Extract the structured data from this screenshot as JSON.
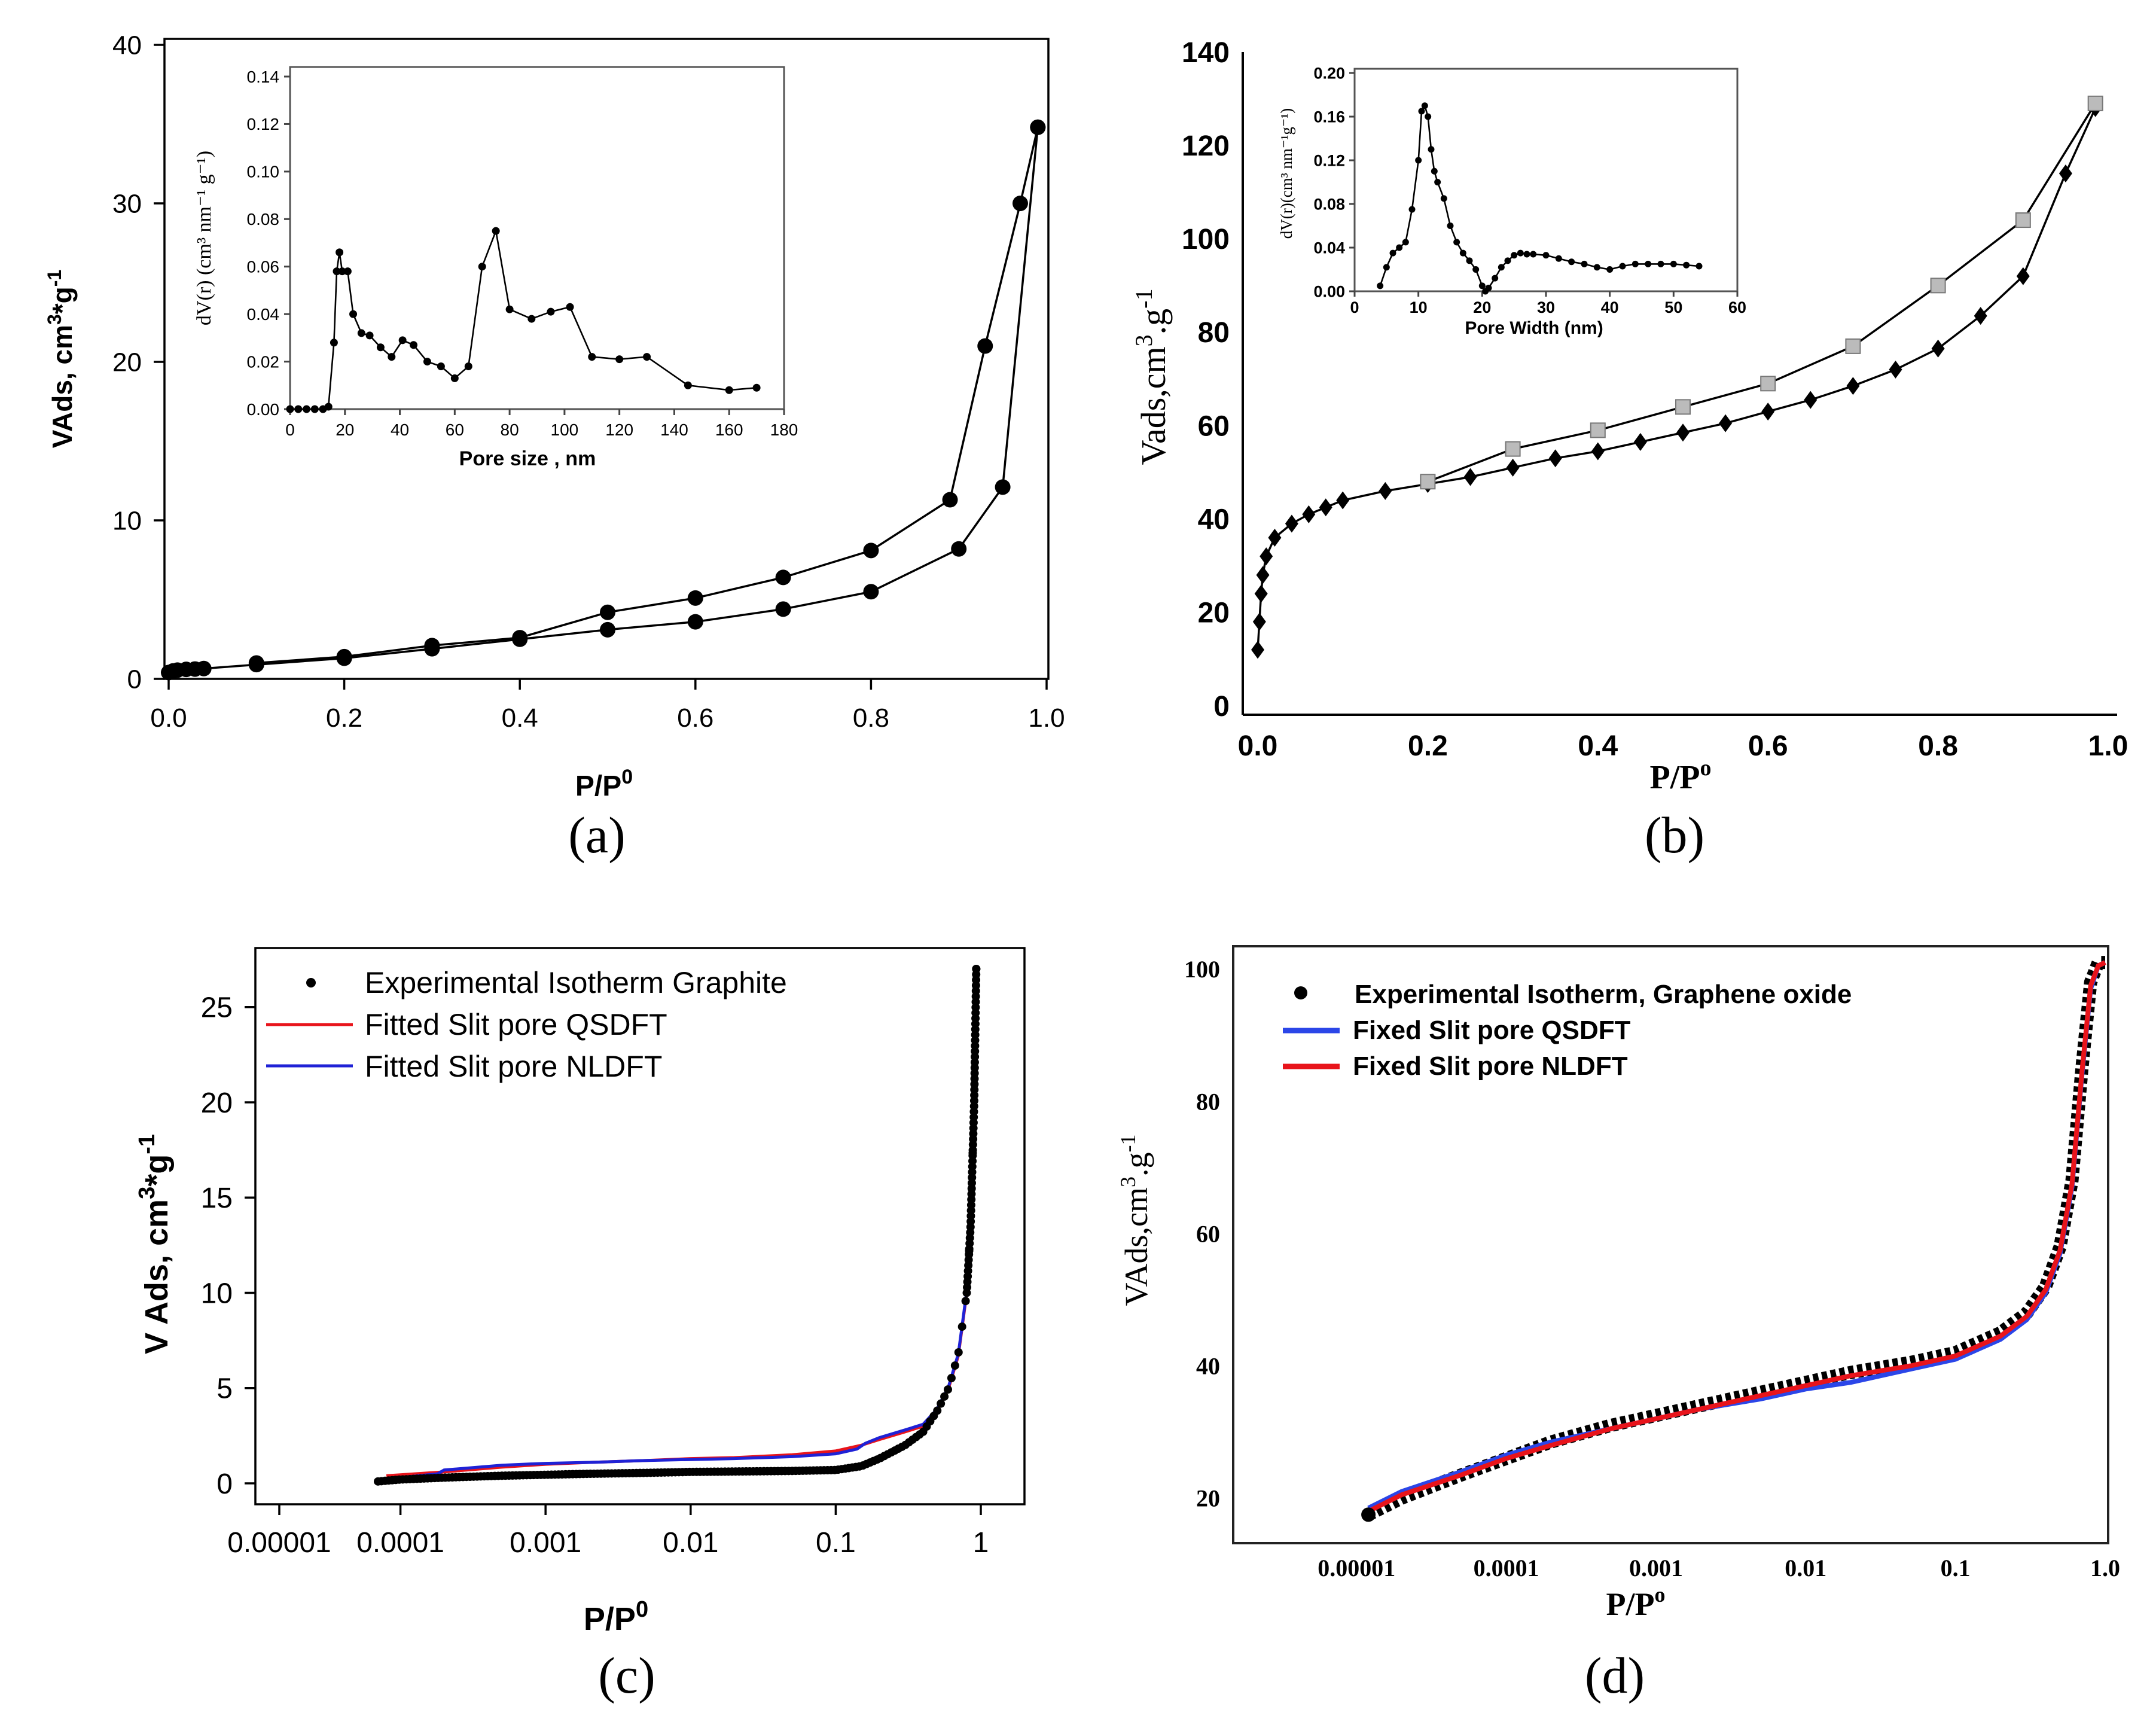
{
  "figure": {
    "captions": [
      "(a)",
      "(b)",
      "(c)",
      "(d)"
    ]
  },
  "chart_data": [
    {
      "panel": "(a)",
      "type": "line",
      "xlabel": "P/P",
      "xlabel_sup": "0",
      "ylabel": "VAds, cm",
      "ylabel_sup1": "3",
      "ylabel_mid": "*g",
      "ylabel_sup2": "-1",
      "xlim": [
        0,
        1.0
      ],
      "ylim": [
        0,
        40
      ],
      "xticks": [
        "0.0",
        "0.2",
        "0.4",
        "0.6",
        "0.8",
        "1.0"
      ],
      "xtick_values": [
        0,
        0.2,
        0.4,
        0.6,
        0.8,
        1.0
      ],
      "yticks": [
        "0",
        "10",
        "20",
        "30",
        "40"
      ],
      "ytick_values": [
        0,
        10,
        20,
        30,
        40
      ],
      "series": [
        {
          "name": "adsorption",
          "marker": "circle",
          "x": [
            0.0,
            0.005,
            0.01,
            0.02,
            0.03,
            0.04,
            0.1,
            0.2,
            0.3,
            0.4,
            0.5,
            0.6,
            0.7,
            0.8,
            0.9,
            0.95,
            0.99
          ],
          "y": [
            0.4,
            0.5,
            0.55,
            0.6,
            0.62,
            0.65,
            0.9,
            1.3,
            1.9,
            2.5,
            3.1,
            3.6,
            4.4,
            5.5,
            8.2,
            12.1,
            34.8
          ]
        },
        {
          "name": "desorption",
          "marker": "circle",
          "x": [
            0.99,
            0.97,
            0.93,
            0.89,
            0.8,
            0.7,
            0.6,
            0.5,
            0.4,
            0.3,
            0.2,
            0.1
          ],
          "y": [
            34.8,
            30.0,
            21.0,
            11.3,
            8.1,
            6.4,
            5.1,
            4.2,
            2.6,
            2.1,
            1.4,
            1.0
          ]
        }
      ],
      "inset": {
        "xlabel": "Pore size , nm",
        "ylabel": "dV(r) (cm³ nm⁻¹ g⁻¹)",
        "xlim": [
          0,
          180
        ],
        "ylim": [
          0,
          0.14
        ],
        "xticks": [
          "0",
          "20",
          "40",
          "60",
          "80",
          "100",
          "120",
          "140",
          "160",
          "180"
        ],
        "xtick_values": [
          0,
          20,
          40,
          60,
          80,
          100,
          120,
          140,
          160,
          180
        ],
        "yticks": [
          "0.00",
          "0.02",
          "0.04",
          "0.06",
          "0.08",
          "0.10",
          "0.12",
          "0.14"
        ],
        "ytick_values": [
          0,
          0.02,
          0.04,
          0.06,
          0.08,
          0.1,
          0.12,
          0.14
        ],
        "x": [
          0,
          3,
          6,
          9,
          12,
          14,
          16,
          17,
          18,
          19,
          21,
          23,
          26,
          29,
          33,
          37,
          41,
          45,
          50,
          55,
          60,
          65,
          70,
          75,
          80,
          88,
          95,
          102,
          110,
          120,
          130,
          145,
          160,
          170
        ],
        "y": [
          0,
          0,
          0,
          0,
          0,
          0.001,
          0.028,
          0.058,
          0.066,
          0.058,
          0.058,
          0.04,
          0.032,
          0.031,
          0.026,
          0.022,
          0.029,
          0.027,
          0.02,
          0.018,
          0.013,
          0.018,
          0.06,
          0.075,
          0.042,
          0.038,
          0.041,
          0.043,
          0.022,
          0.021,
          0.022,
          0.01,
          0.008,
          0.009
        ]
      }
    },
    {
      "panel": "(b)",
      "type": "line",
      "xlabel": "P/P",
      "xlabel_sup": "o",
      "ylabel": "Vads,cm",
      "ylabel_sup1": "3",
      "ylabel_mid": ".g",
      "ylabel_sup2": "-1",
      "xlim": [
        0,
        1.0
      ],
      "ylim": [
        0,
        140
      ],
      "xticks": [
        "0.0",
        "0.2",
        "0.4",
        "0.6",
        "0.8",
        "1.0"
      ],
      "xtick_values": [
        0,
        0.2,
        0.4,
        0.6,
        0.8,
        1.0
      ],
      "yticks": [
        "0",
        "20",
        "40",
        "60",
        "80",
        "100",
        "120",
        "140"
      ],
      "ytick_values": [
        0,
        20,
        40,
        60,
        80,
        100,
        120,
        140
      ],
      "series": [
        {
          "name": "adsorption",
          "marker": "diamond",
          "x": [
            0.0,
            0.002,
            0.004,
            0.006,
            0.01,
            0.02,
            0.04,
            0.06,
            0.08,
            0.1,
            0.15,
            0.2,
            0.25,
            0.3,
            0.35,
            0.4,
            0.45,
            0.5,
            0.55,
            0.6,
            0.65,
            0.7,
            0.75,
            0.8,
            0.85,
            0.9,
            0.95,
            0.985
          ],
          "y": [
            12,
            18,
            24,
            28,
            32,
            36,
            39,
            41,
            42.5,
            44,
            46,
            47.5,
            49,
            51,
            53,
            54.5,
            56.5,
            58.5,
            60.5,
            63,
            65.5,
            68.5,
            72,
            76.5,
            83.5,
            92,
            114,
            128
          ]
        },
        {
          "name": "desorption",
          "marker": "square",
          "x": [
            0.985,
            0.9,
            0.8,
            0.7,
            0.6,
            0.5,
            0.4,
            0.3,
            0.2
          ],
          "y": [
            129,
            104,
            90,
            77,
            69,
            64,
            59,
            55,
            48
          ]
        }
      ],
      "inset": {
        "xlabel": "Pore Width (nm)",
        "ylabel": "dV(r)(cm³ nm⁻¹g⁻¹)",
        "xlim": [
          0,
          60
        ],
        "ylim": [
          0,
          0.2
        ],
        "xticks": [
          "0",
          "10",
          "20",
          "30",
          "40",
          "50",
          "60"
        ],
        "xtick_values": [
          0,
          10,
          20,
          30,
          40,
          50,
          60
        ],
        "yticks": [
          "0.00",
          "0.04",
          "0.08",
          "0.12",
          "0.16",
          "0.20"
        ],
        "ytick_values": [
          0,
          0.04,
          0.08,
          0.12,
          0.16,
          0.2
        ],
        "x": [
          4,
          5,
          6,
          7,
          8,
          9,
          10,
          10.5,
          11,
          11.5,
          12,
          12.5,
          13,
          14,
          15,
          16,
          17,
          18,
          19,
          20,
          20.5,
          21,
          22,
          23,
          24,
          25,
          26,
          27,
          28,
          30,
          32,
          34,
          36,
          38,
          40,
          42,
          44,
          46,
          48,
          50,
          52,
          54
        ],
        "y": [
          0.005,
          0.022,
          0.035,
          0.04,
          0.045,
          0.075,
          0.12,
          0.165,
          0.17,
          0.16,
          0.13,
          0.11,
          0.1,
          0.085,
          0.06,
          0.045,
          0.035,
          0.028,
          0.02,
          0.005,
          0.0,
          0.003,
          0.012,
          0.022,
          0.028,
          0.033,
          0.035,
          0.034,
          0.034,
          0.033,
          0.03,
          0.027,
          0.025,
          0.022,
          0.02,
          0.023,
          0.025,
          0.025,
          0.025,
          0.025,
          0.024,
          0.023
        ]
      }
    },
    {
      "panel": "(c)",
      "type": "line",
      "xscale": "log",
      "xlabel": "P/P",
      "xlabel_sup": "0",
      "ylabel": "V Ads, cm",
      "ylabel_sup1": "3",
      "ylabel_mid": "*g",
      "ylabel_sup2": "-1",
      "xlim": [
        1e-05,
        2
      ],
      "ylim": [
        0,
        27
      ],
      "xticks": [
        "0.00001",
        "0.0001",
        "0.001",
        "0.01",
        "0.1",
        "1"
      ],
      "xtick_values": [
        1e-05,
        0.0001,
        0.001,
        0.01,
        0.1,
        1
      ],
      "yticks": [
        "0",
        "5",
        "10",
        "15",
        "20",
        "25"
      ],
      "ytick_values": [
        0,
        5,
        10,
        15,
        20,
        25
      ],
      "legend": {
        "position": "top-left",
        "entries": [
          "Experimental Isotherm Graphite",
          "Fitted Slit pore QSDFT",
          "Fitted Slit pore NLDFT"
        ]
      },
      "series": [
        {
          "name": "Experimental Isotherm Graphite",
          "color": "#000000",
          "x": [
            7e-05,
            0.0001,
            0.0002,
            0.0005,
            0.001,
            0.002,
            0.005,
            0.01,
            0.02,
            0.05,
            0.1,
            0.15,
            0.2,
            0.3,
            0.4,
            0.5,
            0.6,
            0.7,
            0.8,
            0.85,
            0.9,
            0.93
          ],
          "y": [
            0.1,
            0.2,
            0.3,
            0.4,
            0.45,
            0.5,
            0.55,
            0.6,
            0.62,
            0.65,
            0.7,
            0.9,
            1.3,
            2.0,
            2.7,
            3.8,
            5.0,
            6.8,
            10.0,
            13.5,
            20.0,
            27.0
          ]
        },
        {
          "name": "Fitted Slit pore QSDFT",
          "color": "#e8141b",
          "x": [
            8e-05,
            0.0001,
            0.0002,
            0.0005,
            0.001,
            0.002,
            0.005,
            0.01,
            0.02,
            0.05,
            0.1,
            0.15,
            0.2,
            0.3,
            0.4,
            0.5,
            0.6,
            0.7,
            0.8,
            0.85,
            0.9,
            0.93
          ],
          "y": [
            0.4,
            0.45,
            0.6,
            0.85,
            1.0,
            1.1,
            1.2,
            1.3,
            1.35,
            1.5,
            1.7,
            2.0,
            2.3,
            2.7,
            3.0,
            3.8,
            5.0,
            6.7,
            10.0,
            13.5,
            20.0,
            27.0
          ]
        },
        {
          "name": "Fitted Slit pore NLDFT",
          "color": "#1f22d6",
          "x": [
            7e-05,
            0.0001,
            0.00018,
            0.0002,
            0.0005,
            0.001,
            0.002,
            0.005,
            0.01,
            0.02,
            0.05,
            0.1,
            0.14,
            0.16,
            0.2,
            0.3,
            0.4,
            0.5,
            0.6,
            0.7,
            0.8,
            0.85,
            0.9,
            0.93
          ],
          "y": [
            0.1,
            0.3,
            0.5,
            0.7,
            0.95,
            1.05,
            1.1,
            1.2,
            1.25,
            1.3,
            1.4,
            1.55,
            1.8,
            2.1,
            2.4,
            2.8,
            3.1,
            3.9,
            5.1,
            6.8,
            10.1,
            13.6,
            20.1,
            27.0
          ]
        }
      ]
    },
    {
      "panel": "(d)",
      "type": "line",
      "xscale": "log",
      "xlabel": "P/P",
      "xlabel_sup": "o",
      "ylabel": "VAds,cm",
      "ylabel_sup1": "3",
      "ylabel_mid": ".g",
      "ylabel_sup2": "-1",
      "xlim": [
        1.5e-06,
        1.0
      ],
      "ylim": [
        15,
        102
      ],
      "xticks": [
        "0.00001",
        "0.0001",
        "0.001",
        "0.01",
        "0.1",
        "1.0"
      ],
      "xtick_values": [
        1e-05,
        0.0001,
        0.001,
        0.01,
        0.1,
        1.0
      ],
      "yticks": [
        "20",
        "40",
        "60",
        "80",
        "100"
      ],
      "ytick_values": [
        20,
        40,
        60,
        80,
        100
      ],
      "legend": {
        "position": "top-left",
        "entries": [
          "Experimental Isotherm, Graphene oxide",
          "Fixed Slit pore QSDFT",
          "Fixed Slit pore NLDFT"
        ]
      },
      "series": [
        {
          "name": "Experimental Isotherm, Graphene oxide",
          "color": "#000000",
          "x": [
            1.2e-05,
            2e-05,
            5e-05,
            0.0001,
            0.0002,
            0.0005,
            0.001,
            0.002,
            0.005,
            0.01,
            0.02,
            0.05,
            0.1,
            0.2,
            0.3,
            0.4,
            0.5,
            0.6,
            0.7,
            0.8,
            0.9,
            1.0
          ],
          "y": [
            17.5,
            20,
            23.5,
            26,
            28.5,
            31,
            32.5,
            34,
            36,
            37.5,
            39,
            40.5,
            42,
            45,
            48,
            52,
            58,
            68,
            85,
            98,
            101,
            101
          ]
        },
        {
          "name": "Fixed Slit pore QSDFT",
          "color": "#2b46e8",
          "x": [
            1.2e-05,
            2e-05,
            5e-05,
            0.0001,
            0.0002,
            0.0005,
            0.001,
            0.002,
            0.005,
            0.01,
            0.02,
            0.05,
            0.1,
            0.2,
            0.3,
            0.4,
            0.5,
            0.6,
            0.7,
            0.8,
            0.9,
            1.0
          ],
          "y": [
            18.5,
            21,
            24,
            26.5,
            28.5,
            30.5,
            32,
            33.5,
            35,
            36.5,
            37.5,
            39.5,
            41,
            44,
            47,
            51,
            57,
            67,
            84,
            97,
            100.5,
            101
          ]
        },
        {
          "name": "Fixed Slit pore NLDFT",
          "color": "#e8141b",
          "x": [
            1.2e-05,
            2e-05,
            5e-05,
            0.0001,
            0.0002,
            0.0005,
            0.001,
            0.002,
            0.005,
            0.01,
            0.02,
            0.05,
            0.1,
            0.2,
            0.3,
            0.4,
            0.5,
            0.6,
            0.7,
            0.8,
            0.9,
            1.0
          ],
          "y": [
            18,
            20.5,
            23.5,
            26,
            28,
            30.5,
            32,
            33.5,
            35.5,
            37,
            38.5,
            40,
            41.5,
            44.5,
            47.5,
            51.5,
            57.5,
            67.5,
            84.5,
            97.5,
            100.5,
            101
          ]
        }
      ]
    }
  ]
}
